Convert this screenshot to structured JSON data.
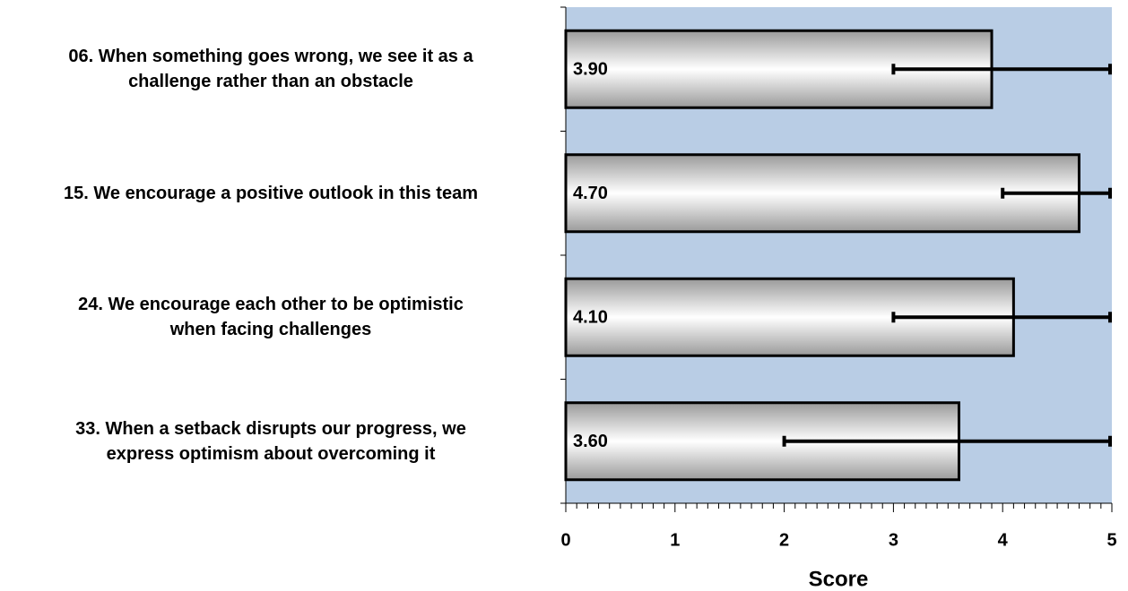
{
  "chart_data": {
    "type": "bar",
    "orientation": "horizontal",
    "categories": [
      "06. When something goes wrong, we see it as a\nchallenge rather than an obstacle",
      "15. We encourage a positive outlook in this team",
      "24. We encourage each other to be optimistic\nwhen facing challenges",
      "33. When a setback disrupts our progress, we\nexpress optimism about overcoming it"
    ],
    "values": [
      3.9,
      4.7,
      4.1,
      3.6
    ],
    "value_labels": [
      "3.90",
      "4.70",
      "4.10",
      "3.60"
    ],
    "error_min": [
      3,
      4,
      3,
      2
    ],
    "error_max": [
      5,
      5,
      5,
      5
    ],
    "xlim": [
      0,
      5
    ],
    "xticks": [
      0,
      1,
      2,
      3,
      4,
      5
    ],
    "xlabel": "Score",
    "plot_background": "#b9cde5"
  }
}
